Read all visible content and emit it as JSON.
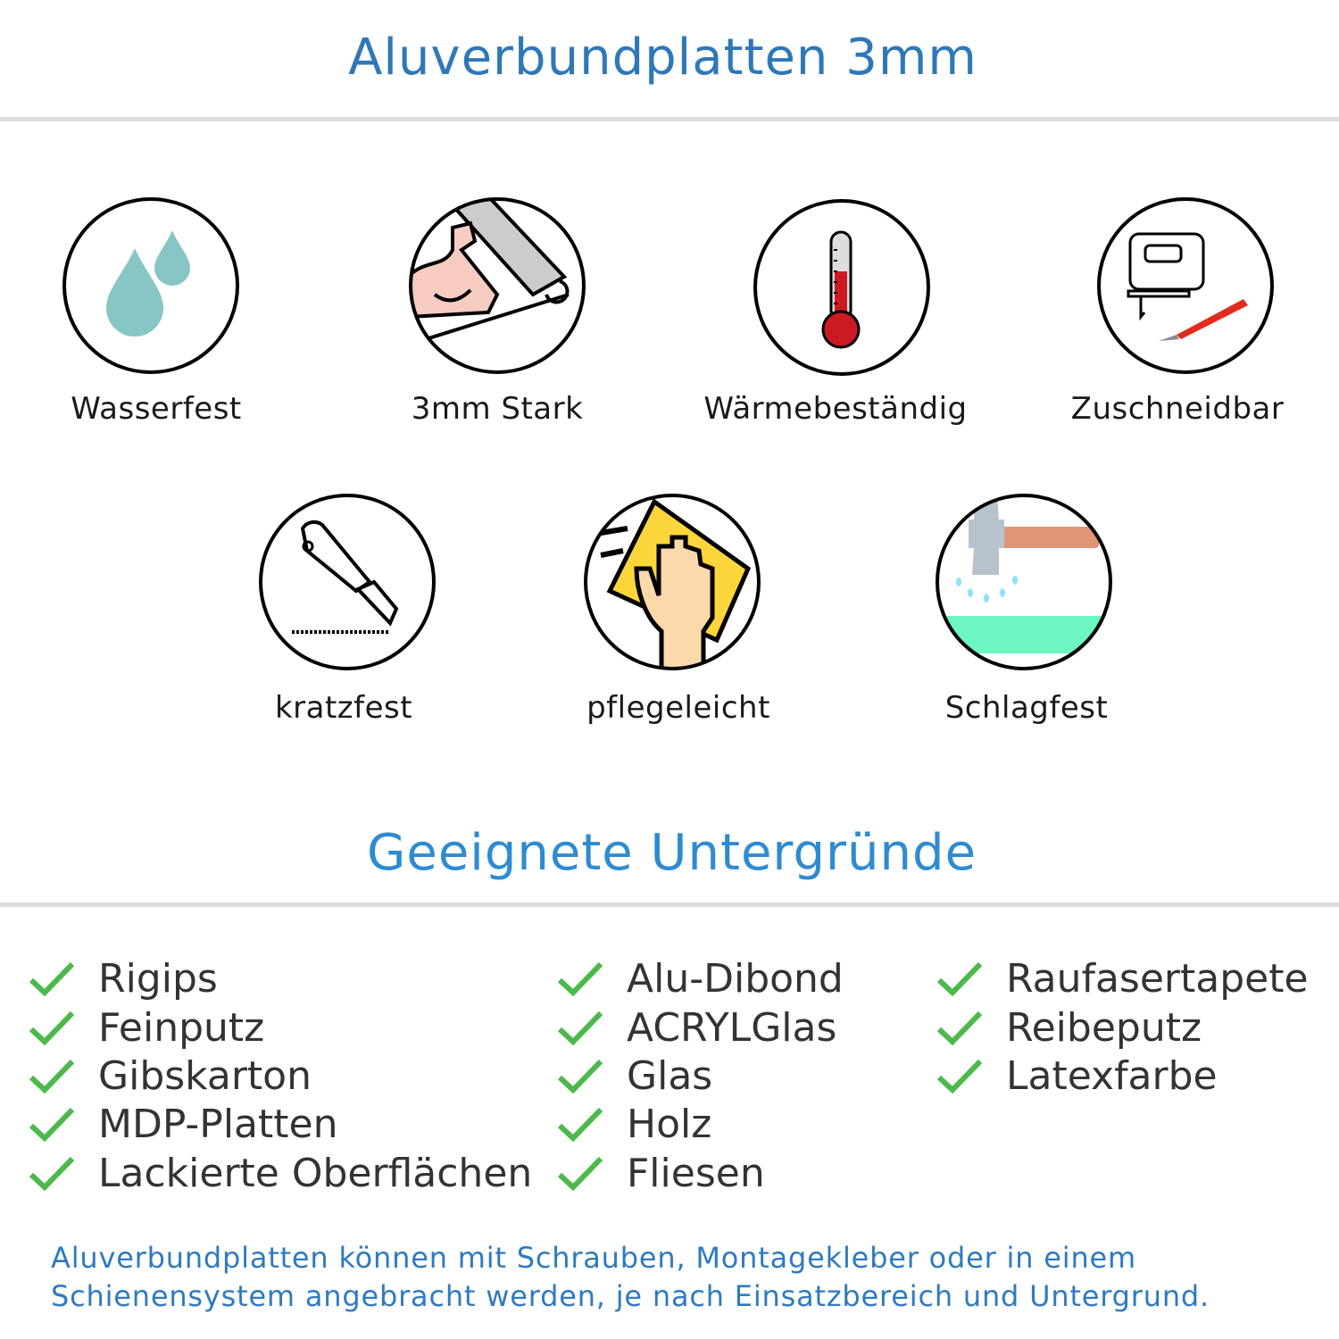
{
  "header": {
    "title": "Aluverbundplatten 3mm"
  },
  "features": [
    {
      "label": "Wasserfest",
      "icon": "water-drops-icon"
    },
    {
      "label": "3mm Stark",
      "icon": "strong-arm-icon"
    },
    {
      "label": "Wärmebeständig",
      "icon": "thermometer-icon"
    },
    {
      "label": "Zuschneidbar",
      "icon": "jigsaw-knife-icon"
    },
    {
      "label": "kratzfest",
      "icon": "cutter-knife-icon"
    },
    {
      "label": "pflegeleicht",
      "icon": "hand-cloth-icon"
    },
    {
      "label": "Schlagfest",
      "icon": "hammer-icon"
    }
  ],
  "surfaces": {
    "title": "Geeignete Untergründe",
    "columns": [
      [
        "Rigips",
        "Feinputz",
        "Gibskarton",
        "MDP-Platten",
        "Lackierte Oberflächen"
      ],
      [
        "Alu-Dibond",
        "ACRYLGlas",
        "Glas",
        "Holz",
        "Fliesen"
      ],
      [
        "Raufasertapete",
        "Reibeputz",
        "Latexfarbe"
      ]
    ]
  },
  "footer": {
    "line1": "Aluverbundplatten können mit Schrauben, Montagekleber oder in einem",
    "line2": "Schienensystem angebracht werden, je nach Einsatzbereich und Untergrund."
  },
  "colors": {
    "title": "#2f78b8",
    "check": "#4cb94a",
    "footer": "#2f7ac0"
  }
}
